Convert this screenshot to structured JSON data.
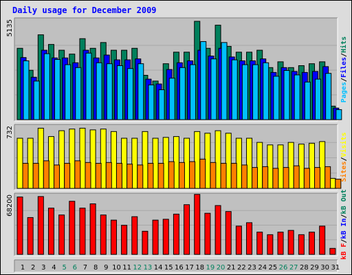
{
  "title": "Daily usage for December 2009",
  "colors": {
    "hits": "#00805c",
    "files": "#0000ff",
    "pages": "#00c0ff",
    "visits": "#ffff00",
    "sites": "#ff8000",
    "kb_f": "#ff0000",
    "kb_in": "#0000ff",
    "kb_out": "#00805c",
    "panel_bg": "#c0c0c0",
    "frame_bg": "#dcdcdc",
    "weekend": "#00805c",
    "weekday": "#000000"
  },
  "chart_data": [
    {
      "type": "bar",
      "name": "hits-files-pages",
      "max_label": "5135",
      "legend": [
        {
          "key": "pages",
          "text": "Pages"
        },
        {
          "key": "sep",
          "text": "/"
        },
        {
          "key": "files",
          "text": "Files"
        },
        {
          "key": "sep",
          "text": "/"
        },
        {
          "key": "hits",
          "text": "Hits"
        }
      ],
      "ylim": [
        0,
        5135
      ],
      "series": [
        {
          "name": "Hits",
          "key": "hits",
          "values": [
            3700,
            2560,
            4400,
            3900,
            3600,
            3400,
            4200,
            3700,
            4000,
            3600,
            3600,
            3700,
            2300,
            2000,
            2900,
            3500,
            3500,
            5100,
            3700,
            4900,
            3800,
            3500,
            3500,
            3600,
            2700,
            3000,
            2700,
            2800,
            2900,
            3000,
            700
          ]
        },
        {
          "name": "Files",
          "key": "files",
          "values": [
            3220,
            2200,
            3600,
            3200,
            3200,
            2950,
            3600,
            3200,
            3350,
            3100,
            3100,
            3150,
            2100,
            1850,
            2600,
            2950,
            3050,
            3600,
            3300,
            3700,
            3250,
            3050,
            3050,
            3150,
            2450,
            2700,
            2500,
            2450,
            2500,
            2750,
            600
          ]
        },
        {
          "name": "Pages",
          "key": "pages",
          "values": [
            3050,
            2000,
            3420,
            3120,
            2850,
            2700,
            3450,
            2950,
            2900,
            2800,
            2650,
            2900,
            1800,
            1550,
            2150,
            2700,
            2850,
            4050,
            3150,
            4000,
            3100,
            2850,
            2850,
            2950,
            2250,
            2550,
            2320,
            1950,
            2100,
            2400,
            520
          ]
        }
      ]
    },
    {
      "type": "bar",
      "name": "visits-sites",
      "max_label": "732",
      "legend": [
        {
          "key": "sites",
          "text": "Sites"
        },
        {
          "key": "sep",
          "text": "/"
        },
        {
          "key": "visits",
          "text": "Visits"
        }
      ],
      "ylim": [
        0,
        732
      ],
      "series": [
        {
          "name": "Visits",
          "key": "visits",
          "values": [
            600,
            600,
            720,
            620,
            690,
            710,
            720,
            700,
            710,
            680,
            600,
            600,
            680,
            600,
            610,
            620,
            600,
            680,
            660,
            690,
            660,
            600,
            600,
            550,
            520,
            520,
            550,
            530,
            540,
            560,
            120
          ]
        },
        {
          "name": "Sites",
          "key": "sites",
          "values": [
            300,
            300,
            330,
            280,
            300,
            330,
            310,
            300,
            310,
            300,
            290,
            280,
            300,
            300,
            320,
            310,
            320,
            350,
            310,
            300,
            300,
            280,
            250,
            260,
            240,
            250,
            270,
            240,
            250,
            260,
            110
          ]
        }
      ]
    },
    {
      "type": "bar",
      "name": "kbytes",
      "max_label": "68200",
      "legend": [
        {
          "key": "kb_f",
          "text": "kB F"
        },
        {
          "key": "sep",
          "text": "/"
        },
        {
          "key": "kb_in",
          "text": "kB In"
        },
        {
          "key": "sep",
          "text": "/"
        },
        {
          "key": "kb_out",
          "text": "kB Out"
        }
      ],
      "ylim": [
        0,
        68200
      ],
      "series": [
        {
          "name": "kB F",
          "key": "kb_f",
          "values": [
            67000,
            43000,
            67500,
            54000,
            46000,
            62000,
            54000,
            59000,
            46000,
            40000,
            34000,
            44000,
            27000,
            40000,
            41000,
            47000,
            58000,
            70000,
            48000,
            57000,
            50000,
            33000,
            37000,
            26000,
            23000,
            26000,
            28000,
            23000,
            26000,
            33000,
            7000
          ]
        }
      ]
    }
  ],
  "x_axis": {
    "days": [
      "1",
      "2",
      "3",
      "4",
      "5",
      "6",
      "7",
      "8",
      "9",
      "10",
      "11",
      "12",
      "13",
      "14",
      "15",
      "16",
      "17",
      "18",
      "19",
      "20",
      "21",
      "22",
      "23",
      "24",
      "25",
      "26",
      "27",
      "28",
      "29",
      "30",
      "31"
    ],
    "weekend_days": [
      "5",
      "6",
      "12",
      "13",
      "19",
      "20",
      "26",
      "27"
    ]
  }
}
